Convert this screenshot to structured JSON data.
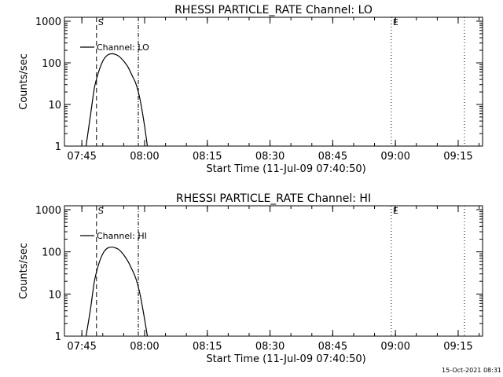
{
  "footer": {
    "timestamp": "15-Oct-2021 08:31"
  },
  "chart_data": [
    {
      "type": "line",
      "title": "RHESSI PARTICLE_RATE Channel: LO",
      "xlabel": "Start Time (11-Jul-09 07:40:50)",
      "ylabel": "Counts/sec",
      "yscale": "log",
      "ylim": [
        1,
        1000
      ],
      "xlim_minutes": [
        0,
        100
      ],
      "x_ticks": [
        "07:45",
        "08:00",
        "08:15",
        "08:30",
        "08:45",
        "09:00",
        "09:15"
      ],
      "y_ticks": [
        "1",
        "10",
        "100",
        "1000"
      ],
      "legend": {
        "label": "Channel: LO",
        "placement": "top-left"
      },
      "markers": [
        {
          "label": "S",
          "time": "07:48:30",
          "style": "dashed"
        },
        {
          "label": "",
          "time": "07:58:30",
          "style": "dash-dot"
        },
        {
          "label": "E",
          "time": "08:59:00",
          "style": "dotted"
        },
        {
          "label": "",
          "time": "09:16:30",
          "style": "dotted"
        }
      ],
      "series": [
        {
          "name": "Channel: LO",
          "x": [
            "07:46:00",
            "07:47:00",
            "07:48:00",
            "07:49:00",
            "07:50:00",
            "07:51:00",
            "07:52:00",
            "07:53:00",
            "07:54:00",
            "07:55:00",
            "07:56:00",
            "07:57:00",
            "07:58:00",
            "07:59:00",
            "08:00:00",
            "08:00:40"
          ],
          "y": [
            1,
            5,
            25,
            60,
            110,
            150,
            165,
            160,
            140,
            110,
            80,
            50,
            30,
            12,
            3,
            1
          ]
        }
      ]
    },
    {
      "type": "line",
      "title": "RHESSI PARTICLE_RATE Channel: HI",
      "xlabel": "Start Time (11-Jul-09 07:40:50)",
      "ylabel": "Counts/sec",
      "yscale": "log",
      "ylim": [
        1,
        1000
      ],
      "xlim_minutes": [
        0,
        100
      ],
      "x_ticks": [
        "07:45",
        "08:00",
        "08:15",
        "08:30",
        "08:45",
        "09:00",
        "09:15"
      ],
      "y_ticks": [
        "1",
        "10",
        "100",
        "1000"
      ],
      "legend": {
        "label": "Channel: HI",
        "placement": "top-left"
      },
      "markers": [
        {
          "label": "S",
          "time": "07:48:30",
          "style": "dashed"
        },
        {
          "label": "",
          "time": "07:58:30",
          "style": "dash-dot"
        },
        {
          "label": "E",
          "time": "08:59:00",
          "style": "dotted"
        },
        {
          "label": "",
          "time": "09:16:30",
          "style": "dotted"
        }
      ],
      "series": [
        {
          "name": "Channel: HI",
          "x": [
            "07:46:00",
            "07:47:00",
            "07:48:00",
            "07:49:00",
            "07:50:00",
            "07:51:00",
            "07:52:00",
            "07:53:00",
            "07:54:00",
            "07:55:00",
            "07:56:00",
            "07:57:00",
            "07:58:00",
            "07:59:00",
            "08:00:00",
            "08:00:40"
          ],
          "y": [
            1,
            4,
            20,
            50,
            90,
            120,
            130,
            125,
            110,
            85,
            60,
            38,
            22,
            9,
            2.5,
            1
          ]
        }
      ]
    }
  ]
}
